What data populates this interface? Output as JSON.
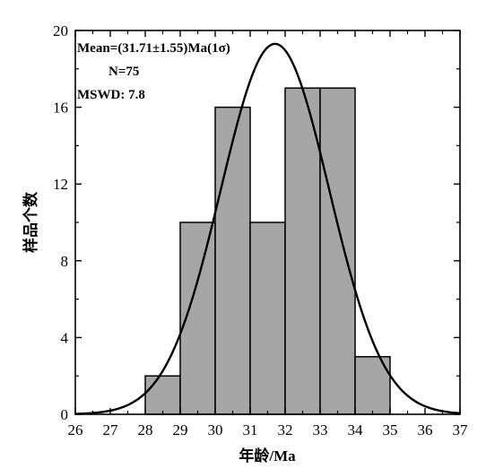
{
  "chart_data": {
    "type": "bar",
    "subtype": "histogram-with-normal-curve",
    "xlabel": "年龄/Ma",
    "ylabel": "样品个数",
    "xlim": [
      26,
      37
    ],
    "ylim": [
      0,
      20
    ],
    "x_ticks": [
      26,
      27,
      28,
      29,
      30,
      31,
      32,
      33,
      34,
      35,
      36,
      37
    ],
    "y_ticks": [
      0,
      4,
      8,
      12,
      16,
      20
    ],
    "bins": [
      {
        "start": 28,
        "end": 29,
        "count": 2
      },
      {
        "start": 29,
        "end": 30,
        "count": 10
      },
      {
        "start": 30,
        "end": 31,
        "count": 16
      },
      {
        "start": 31,
        "end": 32,
        "count": 10
      },
      {
        "start": 32,
        "end": 33,
        "count": 17
      },
      {
        "start": 33,
        "end": 34,
        "count": 17
      },
      {
        "start": 34,
        "end": 35,
        "count": 3
      }
    ],
    "curve": {
      "type": "normal",
      "mean": 31.71,
      "sigma": 1.55,
      "n": 75,
      "bin_width": 1
    },
    "annotations": {
      "mean": "Mean=(31.71±1.55)Ma(1σ)",
      "n": "N=75",
      "mswd": "MSWD: 7.8"
    },
    "colors": {
      "bar_fill": "#a6a6a6",
      "bar_stroke": "#000000",
      "curve": "#000000"
    },
    "grid": false
  }
}
